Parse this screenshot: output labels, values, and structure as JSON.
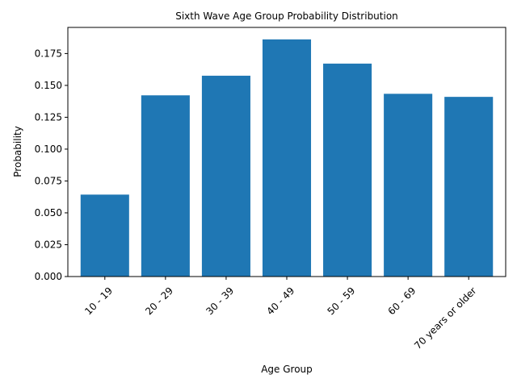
{
  "chart_data": {
    "type": "bar",
    "title": "Sixth Wave Age Group Probability Distribution",
    "xlabel": "Age Group",
    "ylabel": "Probability",
    "categories": [
      "10 - 19",
      "20 - 29",
      "30 - 39",
      "40 - 49",
      "50 - 59",
      "60 - 69",
      "70 years or older"
    ],
    "values": [
      0.0643,
      0.1422,
      0.1576,
      0.1861,
      0.1671,
      0.1434,
      0.141
    ],
    "ylim": [
      0,
      0.1955
    ],
    "yticks": [
      0.0,
      0.025,
      0.05,
      0.075,
      0.1,
      0.125,
      0.15,
      0.175
    ],
    "ytick_labels": [
      "0.000",
      "0.025",
      "0.050",
      "0.075",
      "0.100",
      "0.125",
      "0.150",
      "0.175"
    ],
    "bar_color": "#1f77b4",
    "grid": false,
    "legend": "none"
  }
}
